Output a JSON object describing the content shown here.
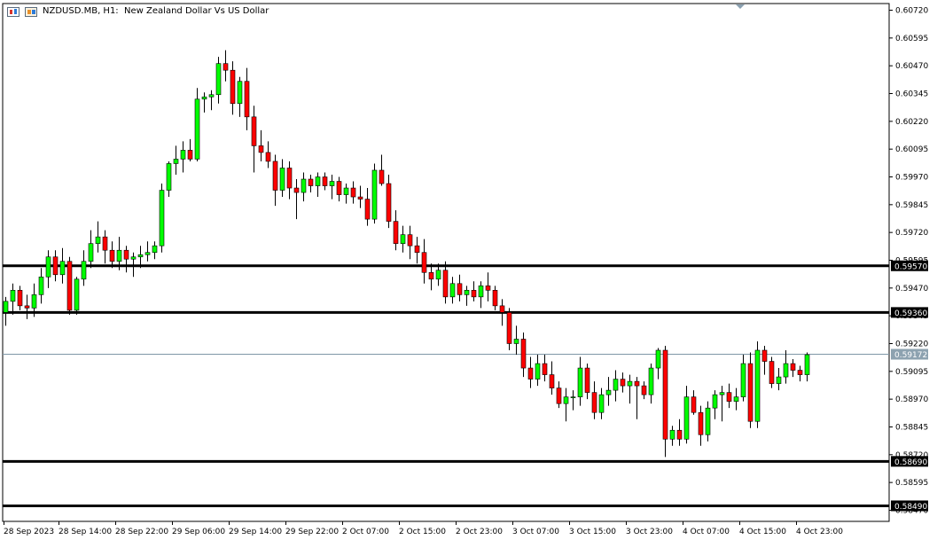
{
  "window": {
    "symbol_label": "NZDUSD.MB, H1:",
    "description": "New Zealand Dollar Vs US Dollar",
    "title_icons": [
      "chart-type-icon",
      "symbol-icon"
    ]
  },
  "colors": {
    "bull": "#00ff00",
    "bear": "#ff0000",
    "frame": "#000000",
    "bid_line": "#7f97a6",
    "level_line": "#000000",
    "label_bg": "#000000",
    "label_text": "#ffffff",
    "bid_label_bg": "#8da2b0"
  },
  "y_axis": {
    "min": 0.5842,
    "max": 0.6075,
    "ticks": [
      "0.60720",
      "0.60595",
      "0.60470",
      "0.60345",
      "0.60220",
      "0.60095",
      "0.59970",
      "0.59845",
      "0.59720",
      "0.59595",
      "0.59470",
      "0.59345",
      "0.59220",
      "0.59095",
      "0.58970",
      "0.58845",
      "0.58720",
      "0.58595",
      "0.58470"
    ]
  },
  "x_axis": {
    "labels": [
      "28 Sep 2023",
      "28 Sep 14:00",
      "28 Sep 22:00",
      "29 Sep 06:00",
      "29 Sep 14:00",
      "29 Sep 22:00",
      "2 Oct 07:00",
      "2 Oct 15:00",
      "2 Oct 23:00",
      "3 Oct 07:00",
      "3 Oct 15:00",
      "3 Oct 23:00",
      "4 Oct 07:00",
      "4 Oct 15:00",
      "4 Oct 23:00"
    ]
  },
  "levels": [
    {
      "price": 0.5957,
      "label": "0.59570"
    },
    {
      "price": 0.5936,
      "label": "0.59360"
    },
    {
      "price": 0.5869,
      "label": "0.58690"
    },
    {
      "price": 0.5849,
      "label": "0.58490"
    }
  ],
  "bid": {
    "price": 0.59172,
    "label": "0.59172"
  },
  "chart_data": {
    "type": "candlestick",
    "candles": [
      [
        0.5936,
        0.5943,
        0.593,
        0.5941
      ],
      [
        0.5941,
        0.5949,
        0.5935,
        0.5946
      ],
      [
        0.5946,
        0.5948,
        0.5937,
        0.5939
      ],
      [
        0.5939,
        0.5944,
        0.5933,
        0.5938
      ],
      [
        0.5938,
        0.5949,
        0.5934,
        0.5944
      ],
      [
        0.5944,
        0.5956,
        0.594,
        0.5952
      ],
      [
        0.5952,
        0.5964,
        0.5947,
        0.5961
      ],
      [
        0.5961,
        0.5964,
        0.595,
        0.5953
      ],
      [
        0.5953,
        0.5965,
        0.5949,
        0.5959
      ],
      [
        0.5959,
        0.5961,
        0.5935,
        0.5937
      ],
      [
        0.5937,
        0.5952,
        0.5935,
        0.5951
      ],
      [
        0.5951,
        0.5964,
        0.5948,
        0.5959
      ],
      [
        0.5959,
        0.5973,
        0.5956,
        0.5967
      ],
      [
        0.5967,
        0.5977,
        0.5963,
        0.597
      ],
      [
        0.597,
        0.5973,
        0.5958,
        0.5964
      ],
      [
        0.5964,
        0.5968,
        0.5956,
        0.5959
      ],
      [
        0.5959,
        0.597,
        0.5955,
        0.5964
      ],
      [
        0.5964,
        0.5966,
        0.5954,
        0.596
      ],
      [
        0.596,
        0.5963,
        0.5952,
        0.5961
      ],
      [
        0.5961,
        0.5966,
        0.5956,
        0.5962
      ],
      [
        0.5962,
        0.5968,
        0.5959,
        0.5963
      ],
      [
        0.5963,
        0.5968,
        0.596,
        0.5966
      ],
      [
        0.5966,
        0.5994,
        0.5963,
        0.5991
      ],
      [
        0.5991,
        0.6004,
        0.5988,
        0.6003
      ],
      [
        0.6003,
        0.6011,
        0.5998,
        0.6005
      ],
      [
        0.6005,
        0.6013,
        0.5999,
        0.6009
      ],
      [
        0.6009,
        0.6014,
        0.6004,
        0.6005
      ],
      [
        0.6005,
        0.6037,
        0.6004,
        0.6032
      ],
      [
        0.6032,
        0.6035,
        0.6026,
        0.6033
      ],
      [
        0.6033,
        0.6036,
        0.6027,
        0.6034
      ],
      [
        0.6034,
        0.6051,
        0.603,
        0.6048
      ],
      [
        0.6048,
        0.6054,
        0.604,
        0.6045
      ],
      [
        0.6045,
        0.6049,
        0.6025,
        0.603
      ],
      [
        0.603,
        0.6042,
        0.6024,
        0.604
      ],
      [
        0.604,
        0.6046,
        0.6018,
        0.6024
      ],
      [
        0.6024,
        0.6029,
        0.5999,
        0.6011
      ],
      [
        0.6011,
        0.6018,
        0.6004,
        0.6008
      ],
      [
        0.6008,
        0.6013,
        0.6001,
        0.6004
      ],
      [
        0.6004,
        0.6007,
        0.5984,
        0.5991
      ],
      [
        0.5991,
        0.6005,
        0.5988,
        0.6001
      ],
      [
        0.6001,
        0.6004,
        0.5987,
        0.5992
      ],
      [
        0.5992,
        0.5996,
        0.5978,
        0.599
      ],
      [
        0.599,
        0.5999,
        0.5986,
        0.5996
      ],
      [
        0.5996,
        0.5998,
        0.599,
        0.5993
      ],
      [
        0.5993,
        0.5999,
        0.5988,
        0.5997
      ],
      [
        0.5997,
        0.5999,
        0.5991,
        0.5993
      ],
      [
        0.5993,
        0.5998,
        0.5987,
        0.5995
      ],
      [
        0.5995,
        0.5997,
        0.5986,
        0.5989
      ],
      [
        0.5989,
        0.5994,
        0.5985,
        0.5992
      ],
      [
        0.5992,
        0.5995,
        0.5985,
        0.5988
      ],
      [
        0.5988,
        0.5993,
        0.5983,
        0.5987
      ],
      [
        0.5987,
        0.5992,
        0.5975,
        0.5978
      ],
      [
        0.5978,
        0.6003,
        0.5976,
        0.6
      ],
      [
        0.6,
        0.6007,
        0.5993,
        0.5994
      ],
      [
        0.5994,
        0.5998,
        0.5974,
        0.5977
      ],
      [
        0.5977,
        0.5982,
        0.5964,
        0.5967
      ],
      [
        0.5967,
        0.5975,
        0.5963,
        0.5971
      ],
      [
        0.5971,
        0.5975,
        0.596,
        0.5966
      ],
      [
        0.5966,
        0.597,
        0.5958,
        0.5963
      ],
      [
        0.5963,
        0.5969,
        0.5949,
        0.5954
      ],
      [
        0.5954,
        0.5958,
        0.5946,
        0.5951
      ],
      [
        0.5951,
        0.5958,
        0.5948,
        0.5955
      ],
      [
        0.5955,
        0.5959,
        0.594,
        0.5943
      ],
      [
        0.5943,
        0.5952,
        0.594,
        0.5949
      ],
      [
        0.5949,
        0.5953,
        0.5941,
        0.5944
      ],
      [
        0.5944,
        0.5948,
        0.5939,
        0.5946
      ],
      [
        0.5946,
        0.595,
        0.5941,
        0.5943
      ],
      [
        0.5943,
        0.595,
        0.5938,
        0.5948
      ],
      [
        0.5948,
        0.5954,
        0.5941,
        0.5946
      ],
      [
        0.5946,
        0.5948,
        0.5937,
        0.5939
      ],
      [
        0.5939,
        0.5942,
        0.593,
        0.5936
      ],
      [
        0.5936,
        0.5938,
        0.5919,
        0.5922
      ],
      [
        0.5922,
        0.593,
        0.5917,
        0.5924
      ],
      [
        0.5924,
        0.5927,
        0.5907,
        0.5911
      ],
      [
        0.5911,
        0.5916,
        0.5902,
        0.5906
      ],
      [
        0.5906,
        0.5917,
        0.5903,
        0.5913
      ],
      [
        0.5913,
        0.5917,
        0.5905,
        0.5908
      ],
      [
        0.5908,
        0.5914,
        0.5899,
        0.5902
      ],
      [
        0.5902,
        0.5905,
        0.5893,
        0.5895
      ],
      [
        0.5895,
        0.5902,
        0.5887,
        0.5898
      ],
      [
        0.5898,
        0.5901,
        0.5892,
        0.5898
      ],
      [
        0.5898,
        0.5916,
        0.5894,
        0.5911
      ],
      [
        0.5911,
        0.5913,
        0.5897,
        0.59
      ],
      [
        0.59,
        0.5905,
        0.5888,
        0.5891
      ],
      [
        0.5891,
        0.5902,
        0.5888,
        0.5899
      ],
      [
        0.5899,
        0.5907,
        0.5894,
        0.5901
      ],
      [
        0.5901,
        0.591,
        0.5896,
        0.5906
      ],
      [
        0.5906,
        0.5909,
        0.59,
        0.5903
      ],
      [
        0.5903,
        0.5908,
        0.5895,
        0.5905
      ],
      [
        0.5905,
        0.5907,
        0.5888,
        0.5903
      ],
      [
        0.5903,
        0.5905,
        0.5897,
        0.5899
      ],
      [
        0.5899,
        0.5913,
        0.5895,
        0.5911
      ],
      [
        0.5911,
        0.592,
        0.5906,
        0.5919
      ],
      [
        0.5919,
        0.5921,
        0.5871,
        0.5879
      ],
      [
        0.5879,
        0.5885,
        0.5876,
        0.5883
      ],
      [
        0.5883,
        0.5888,
        0.5876,
        0.5879
      ],
      [
        0.5879,
        0.5903,
        0.5877,
        0.5898
      ],
      [
        0.5898,
        0.5901,
        0.589,
        0.5891
      ],
      [
        0.5891,
        0.5894,
        0.5876,
        0.5881
      ],
      [
        0.5881,
        0.5896,
        0.5878,
        0.5893
      ],
      [
        0.5893,
        0.5901,
        0.5888,
        0.5899
      ],
      [
        0.5899,
        0.5903,
        0.5887,
        0.59
      ],
      [
        0.59,
        0.5904,
        0.5893,
        0.5896
      ],
      [
        0.5896,
        0.5902,
        0.5892,
        0.5898
      ],
      [
        0.5898,
        0.5917,
        0.5896,
        0.5913
      ],
      [
        0.5913,
        0.5918,
        0.5884,
        0.5887
      ],
      [
        0.5887,
        0.5923,
        0.5884,
        0.5919
      ],
      [
        0.5919,
        0.5921,
        0.5908,
        0.5914
      ],
      [
        0.5914,
        0.5916,
        0.5902,
        0.5904
      ],
      [
        0.5904,
        0.5911,
        0.5901,
        0.5907
      ],
      [
        0.5907,
        0.5919,
        0.5904,
        0.5913
      ],
      [
        0.5913,
        0.5915,
        0.5907,
        0.591
      ],
      [
        0.591,
        0.5912,
        0.5905,
        0.5908
      ],
      [
        0.5908,
        0.5918,
        0.5905,
        0.5917
      ]
    ]
  }
}
